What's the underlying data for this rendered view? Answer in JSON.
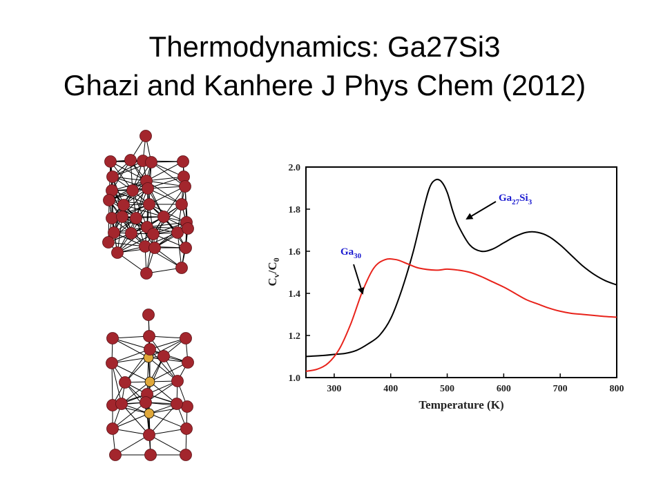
{
  "slide": {
    "title_line1": "Thermodynamics: Ga27Si3",
    "title_line2": "Ghazi and Kanhere  J Phys Chem (2012)"
  },
  "colors": {
    "ga27si3_curve": "#000000",
    "ga30_curve": "#e8221a",
    "ga_atom": "#a3262d",
    "si_atom": "#e0a83a",
    "ga30_label": "#1a1ad0",
    "ga27si3_label": "#1a1ad0"
  },
  "icons": [
    "ga30-cluster-structure",
    "ga27si3-cluster-structure"
  ],
  "chart_data": {
    "type": "line",
    "xlabel": "Temperature (K)",
    "ylabel": "Cv/C0",
    "xlim": [
      250,
      800
    ],
    "ylim": [
      1.0,
      2.0
    ],
    "xticks": [
      300,
      400,
      500,
      600,
      700,
      800
    ],
    "yticks": [
      "1.0",
      "1.2",
      "1.4",
      "1.6",
      "1.8",
      "2.0"
    ],
    "grid": false,
    "legend": "none (inline annotations)",
    "series": [
      {
        "name": "Ga27Si3",
        "x": [
          250,
          280,
          300,
          320,
          340,
          360,
          380,
          400,
          420,
          440,
          460,
          470,
          480,
          490,
          500,
          510,
          520,
          540,
          560,
          580,
          600,
          620,
          640,
          660,
          680,
          700,
          720,
          740,
          760,
          780,
          800
        ],
        "y": [
          1.1,
          1.105,
          1.11,
          1.115,
          1.13,
          1.16,
          1.2,
          1.28,
          1.42,
          1.6,
          1.82,
          1.91,
          1.94,
          1.93,
          1.88,
          1.79,
          1.72,
          1.63,
          1.6,
          1.61,
          1.64,
          1.67,
          1.69,
          1.69,
          1.67,
          1.63,
          1.58,
          1.53,
          1.49,
          1.46,
          1.44
        ]
      },
      {
        "name": "Ga30",
        "x": [
          250,
          270,
          290,
          310,
          330,
          350,
          370,
          390,
          410,
          430,
          450,
          480,
          500,
          520,
          540,
          560,
          580,
          600,
          620,
          640,
          660,
          680,
          700,
          720,
          740,
          760,
          780,
          800
        ],
        "y": [
          1.03,
          1.04,
          1.07,
          1.14,
          1.26,
          1.41,
          1.52,
          1.56,
          1.56,
          1.54,
          1.52,
          1.51,
          1.515,
          1.51,
          1.5,
          1.48,
          1.455,
          1.43,
          1.4,
          1.37,
          1.35,
          1.33,
          1.315,
          1.305,
          1.3,
          1.295,
          1.29,
          1.287
        ]
      }
    ],
    "annotations": [
      {
        "label": "Ga",
        "sub": "30",
        "series": "Ga30"
      },
      {
        "label_parts": [
          "Ga",
          "27",
          "Si",
          "3"
        ],
        "series": "Ga27Si3"
      }
    ]
  }
}
